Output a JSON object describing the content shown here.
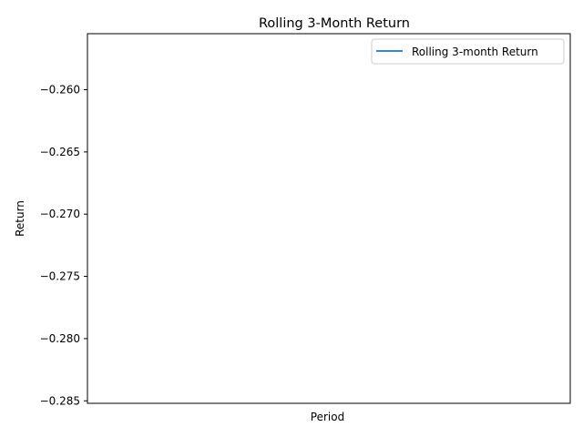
{
  "chart_data": {
    "type": "line",
    "title": "Rolling 3-Month Return",
    "xlabel": "Period",
    "ylabel": "Return",
    "x": [],
    "series": [
      {
        "name": "Rolling 3-month Return",
        "values": [],
        "color": "#1f77b4"
      }
    ],
    "ylim": [
      -0.2852,
      -0.2555
    ],
    "yticks": [
      -0.26,
      -0.265,
      -0.27,
      -0.275,
      -0.28,
      -0.285
    ],
    "ytick_labels": [
      "−0.260",
      "−0.265",
      "−0.270",
      "−0.275",
      "−0.280",
      "−0.285"
    ],
    "grid": false,
    "legend": "top-right"
  }
}
